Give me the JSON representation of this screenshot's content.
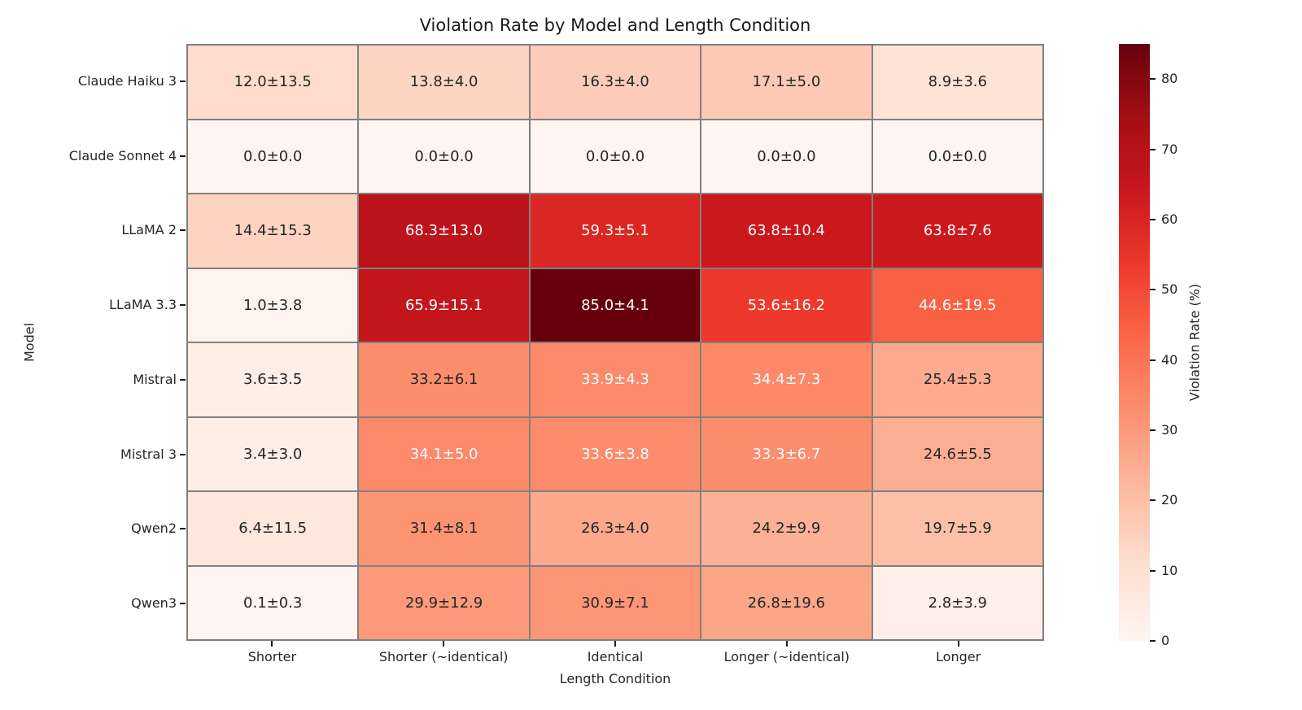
{
  "chart_data": {
    "type": "heatmap",
    "title": "Violation Rate by Model and Length Condition",
    "xlabel": "Length Condition",
    "ylabel": "Model",
    "rows": [
      "Claude Haiku 3",
      "Claude Sonnet 4",
      "LLaMA 2",
      "LLaMA 3.3",
      "Mistral",
      "Mistral 3",
      "Qwen2",
      "Qwen3"
    ],
    "columns": [
      "Shorter",
      "Shorter (~identical)",
      "Identical",
      "Longer (~identical)",
      "Longer"
    ],
    "means": [
      [
        12.0,
        13.8,
        16.3,
        17.1,
        8.9
      ],
      [
        0.0,
        0.0,
        0.0,
        0.0,
        0.0
      ],
      [
        14.4,
        68.3,
        59.3,
        63.8,
        63.8
      ],
      [
        1.0,
        65.9,
        85.0,
        53.6,
        44.6
      ],
      [
        3.6,
        33.2,
        33.9,
        34.4,
        25.4
      ],
      [
        3.4,
        34.1,
        33.6,
        33.3,
        24.6
      ],
      [
        6.4,
        31.4,
        26.3,
        24.2,
        19.7
      ],
      [
        0.1,
        29.9,
        30.9,
        26.8,
        2.8
      ]
    ],
    "stds": [
      [
        13.5,
        4.0,
        4.0,
        5.0,
        3.6
      ],
      [
        0.0,
        0.0,
        0.0,
        0.0,
        0.0
      ],
      [
        15.3,
        13.0,
        5.1,
        10.4,
        7.6
      ],
      [
        3.8,
        15.1,
        4.1,
        16.2,
        19.5
      ],
      [
        3.5,
        6.1,
        4.3,
        7.3,
        5.3
      ],
      [
        3.0,
        5.0,
        3.8,
        6.7,
        5.5
      ],
      [
        11.5,
        8.1,
        4.0,
        9.9,
        5.9
      ],
      [
        0.3,
        12.9,
        7.1,
        19.6,
        3.9
      ]
    ],
    "annotation_separator": "±",
    "vmin": 0,
    "vmax": 85,
    "colormap": "Reds",
    "colormap_stops": [
      "#fff5f0",
      "#fee0d2",
      "#fcbba1",
      "#fc9272",
      "#fb6a4a",
      "#ef3b2c",
      "#cb181d",
      "#a50f15",
      "#67000d"
    ],
    "colorbar": {
      "label": "Violation Rate (%)",
      "ticks": [
        0,
        10,
        20,
        30,
        40,
        50,
        60,
        70,
        80
      ]
    },
    "grid_line_color": "#808080",
    "annotation_dark_color": "#262626",
    "annotation_light_color": "#ffffff",
    "luminance_threshold": 0.408
  }
}
